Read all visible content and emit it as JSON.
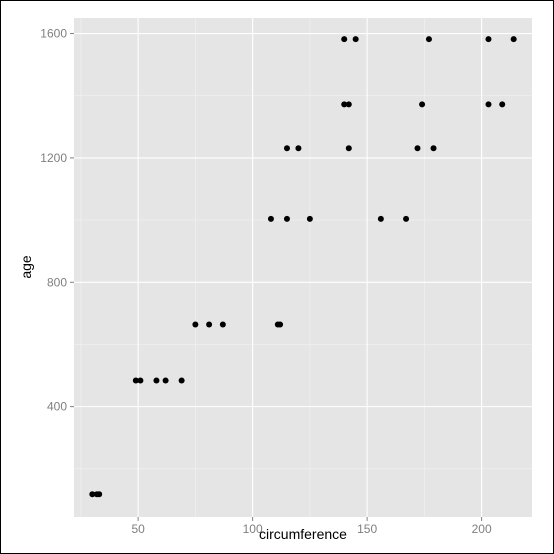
{
  "chart_data": {
    "type": "scatter",
    "xlabel": "circumference",
    "ylabel": "age",
    "xlim": [
      22,
      222
    ],
    "ylim": [
      45,
      1650
    ],
    "x_ticks": [
      50,
      100,
      150,
      200
    ],
    "y_ticks": [
      400,
      800,
      1200,
      1600
    ],
    "grid": true,
    "colors": {
      "panel": "#e5e5e5",
      "grid_major": "#ffffff",
      "grid_minor": "#f2f2f2",
      "point": "#000000",
      "tick_label": "#7f7f7f"
    },
    "points": [
      {
        "x": 30,
        "y": 118
      },
      {
        "x": 32,
        "y": 118
      },
      {
        "x": 33,
        "y": 118
      },
      {
        "x": 49,
        "y": 484
      },
      {
        "x": 51,
        "y": 484
      },
      {
        "x": 58,
        "y": 484
      },
      {
        "x": 62,
        "y": 484
      },
      {
        "x": 69,
        "y": 484
      },
      {
        "x": 75,
        "y": 664
      },
      {
        "x": 81,
        "y": 664
      },
      {
        "x": 87,
        "y": 664
      },
      {
        "x": 111,
        "y": 664
      },
      {
        "x": 112,
        "y": 664
      },
      {
        "x": 108,
        "y": 1004
      },
      {
        "x": 115,
        "y": 1004
      },
      {
        "x": 125,
        "y": 1004
      },
      {
        "x": 156,
        "y": 1004
      },
      {
        "x": 167,
        "y": 1004
      },
      {
        "x": 115,
        "y": 1231
      },
      {
        "x": 120,
        "y": 1231
      },
      {
        "x": 142,
        "y": 1231
      },
      {
        "x": 172,
        "y": 1231
      },
      {
        "x": 179,
        "y": 1231
      },
      {
        "x": 140,
        "y": 1372
      },
      {
        "x": 142,
        "y": 1372
      },
      {
        "x": 174,
        "y": 1372
      },
      {
        "x": 203,
        "y": 1372
      },
      {
        "x": 209,
        "y": 1372
      },
      {
        "x": 140,
        "y": 1582
      },
      {
        "x": 145,
        "y": 1582
      },
      {
        "x": 177,
        "y": 1582
      },
      {
        "x": 203,
        "y": 1582
      },
      {
        "x": 214,
        "y": 1582
      }
    ]
  }
}
